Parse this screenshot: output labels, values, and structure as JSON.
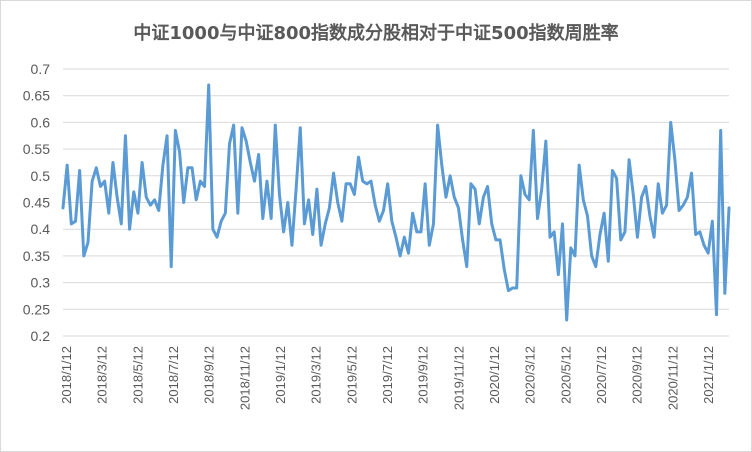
{
  "chart_data": {
    "type": "line",
    "title": "中证1000与中证800指数成分股相对于中证500指数周胜率",
    "xlabel": "",
    "ylabel": "",
    "ylim": [
      0.2,
      0.7
    ],
    "yticks": [
      "0.2",
      "0.25",
      "0.3",
      "0.35",
      "0.4",
      "0.45",
      "0.5",
      "0.55",
      "0.6",
      "0.65",
      "0.7"
    ],
    "xticks": [
      "2018/1/12",
      "2018/3/12",
      "2018/5/12",
      "2018/7/12",
      "2018/9/12",
      "2018/11/12",
      "2019/1/12",
      "2019/3/12",
      "2019/5/12",
      "2019/7/12",
      "2019/9/12",
      "2019/11/12",
      "2020/1/12",
      "2020/3/12",
      "2020/5/12",
      "2020/7/12",
      "2020/9/12",
      "2020/11/12",
      "2021/1/12"
    ],
    "grid": "horizontal",
    "legend": "none",
    "color": "#5b9bd5",
    "series": [
      {
        "values": [
          0.44,
          0.52,
          0.41,
          0.415,
          0.51,
          0.35,
          0.375,
          0.49,
          0.515,
          0.48,
          0.49,
          0.43,
          0.525,
          0.46,
          0.41,
          0.575,
          0.4,
          0.47,
          0.43,
          0.525,
          0.46,
          0.445,
          0.455,
          0.435,
          0.52,
          0.575,
          0.33,
          0.585,
          0.545,
          0.45,
          0.515,
          0.515,
          0.455,
          0.49,
          0.48,
          0.67,
          0.4,
          0.385,
          0.415,
          0.43,
          0.56,
          0.595,
          0.43,
          0.59,
          0.565,
          0.525,
          0.49,
          0.54,
          0.42,
          0.49,
          0.42,
          0.595,
          0.465,
          0.395,
          0.45,
          0.37,
          0.475,
          0.59,
          0.41,
          0.455,
          0.39,
          0.475,
          0.37,
          0.41,
          0.44,
          0.505,
          0.45,
          0.415,
          0.485,
          0.485,
          0.465,
          0.535,
          0.49,
          0.485,
          0.49,
          0.445,
          0.415,
          0.435,
          0.485,
          0.415,
          0.385,
          0.35,
          0.385,
          0.355,
          0.43,
          0.395,
          0.395,
          0.485,
          0.37,
          0.41,
          0.595,
          0.52,
          0.46,
          0.5,
          0.46,
          0.44,
          0.38,
          0.33,
          0.485,
          0.475,
          0.41,
          0.46,
          0.48,
          0.41,
          0.38,
          0.38,
          0.325,
          0.285,
          0.29,
          0.29,
          0.5,
          0.465,
          0.455,
          0.585,
          0.42,
          0.475,
          0.565,
          0.385,
          0.395,
          0.315,
          0.41,
          0.23,
          0.365,
          0.35,
          0.52,
          0.455,
          0.425,
          0.35,
          0.33,
          0.39,
          0.43,
          0.34,
          0.51,
          0.495,
          0.38,
          0.395,
          0.53,
          0.465,
          0.385,
          0.46,
          0.48,
          0.425,
          0.385,
          0.485,
          0.43,
          0.445,
          0.6,
          0.53,
          0.435,
          0.445,
          0.46,
          0.505,
          0.39,
          0.395,
          0.37,
          0.355,
          0.415,
          0.24,
          0.585,
          0.28,
          0.44
        ]
      }
    ]
  }
}
